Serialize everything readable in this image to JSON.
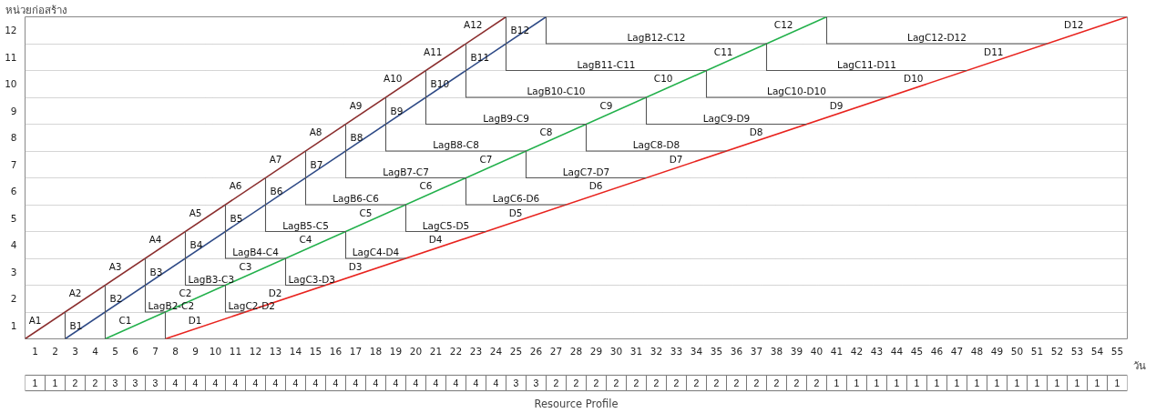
{
  "chart_data": [
    {
      "type": "line",
      "xlabel": "วัน",
      "ylabel": "หน่วยก่อสร้าง",
      "xlim": [
        0,
        55
      ],
      "ylim": [
        0,
        12
      ],
      "grid": "y",
      "marker": "none",
      "line_style": "solid",
      "xticks": [
        {
          "value": 0.5,
          "label": "1"
        },
        {
          "value": 1.5,
          "label": "2"
        },
        {
          "value": 2.5,
          "label": "3"
        },
        {
          "value": 3.5,
          "label": "4"
        },
        {
          "value": 4.5,
          "label": "5"
        },
        {
          "value": 5.5,
          "label": "6"
        },
        {
          "value": 6.5,
          "label": "7"
        },
        {
          "value": 7.5,
          "label": "8"
        },
        {
          "value": 8.5,
          "label": "9"
        },
        {
          "value": 9.5,
          "label": "10"
        },
        {
          "value": 10.5,
          "label": "11"
        },
        {
          "value": 11.5,
          "label": "12"
        },
        {
          "value": 12.5,
          "label": "13"
        },
        {
          "value": 13.5,
          "label": "14"
        },
        {
          "value": 14.5,
          "label": "15"
        },
        {
          "value": 15.5,
          "label": "16"
        },
        {
          "value": 16.5,
          "label": "17"
        },
        {
          "value": 17.5,
          "label": "18"
        },
        {
          "value": 18.5,
          "label": "19"
        },
        {
          "value": 19.5,
          "label": "20"
        },
        {
          "value": 20.5,
          "label": "21"
        },
        {
          "value": 21.5,
          "label": "22"
        },
        {
          "value": 22.5,
          "label": "23"
        },
        {
          "value": 23.5,
          "label": "24"
        },
        {
          "value": 24.5,
          "label": "25"
        },
        {
          "value": 25.5,
          "label": "26"
        },
        {
          "value": 26.5,
          "label": "27"
        },
        {
          "value": 27.5,
          "label": "28"
        },
        {
          "value": 28.5,
          "label": "29"
        },
        {
          "value": 29.5,
          "label": "30"
        },
        {
          "value": 30.5,
          "label": "31"
        },
        {
          "value": 31.5,
          "label": "32"
        },
        {
          "value": 32.5,
          "label": "33"
        },
        {
          "value": 33.5,
          "label": "34"
        },
        {
          "value": 34.5,
          "label": "35"
        },
        {
          "value": 35.5,
          "label": "36"
        },
        {
          "value": 36.5,
          "label": "37"
        },
        {
          "value": 37.5,
          "label": "38"
        },
        {
          "value": 38.5,
          "label": "39"
        },
        {
          "value": 39.5,
          "label": "40"
        },
        {
          "value": 40.5,
          "label": "41"
        },
        {
          "value": 41.5,
          "label": "42"
        },
        {
          "value": 42.5,
          "label": "43"
        },
        {
          "value": 43.5,
          "label": "44"
        },
        {
          "value": 44.5,
          "label": "45"
        },
        {
          "value": 45.5,
          "label": "46"
        },
        {
          "value": 46.5,
          "label": "47"
        },
        {
          "value": 47.5,
          "label": "48"
        },
        {
          "value": 48.5,
          "label": "49"
        },
        {
          "value": 49.5,
          "label": "50"
        },
        {
          "value": 50.5,
          "label": "51"
        },
        {
          "value": 51.5,
          "label": "52"
        },
        {
          "value": 52.5,
          "label": "53"
        },
        {
          "value": 53.5,
          "label": "54"
        },
        {
          "value": 54.5,
          "label": "55"
        }
      ],
      "yticks": [
        {
          "value": 0.5,
          "label": "1"
        },
        {
          "value": 1.5,
          "label": "2"
        },
        {
          "value": 2.5,
          "label": "3"
        },
        {
          "value": 3.5,
          "label": "4"
        },
        {
          "value": 4.5,
          "label": "5"
        },
        {
          "value": 5.5,
          "label": "6"
        },
        {
          "value": 6.5,
          "label": "7"
        },
        {
          "value": 7.5,
          "label": "8"
        },
        {
          "value": 8.5,
          "label": "9"
        },
        {
          "value": 9.5,
          "label": "10"
        },
        {
          "value": 10.5,
          "label": "11"
        },
        {
          "value": 11.5,
          "label": "12"
        },
        {
          "value": 1,
          "label": null
        },
        {
          "value": 2,
          "label": null
        },
        {
          "value": 3,
          "label": null
        },
        {
          "value": 4,
          "label": null
        },
        {
          "value": 5,
          "label": null
        },
        {
          "value": 6,
          "label": null
        },
        {
          "value": 7,
          "label": null
        },
        {
          "value": 8,
          "label": null
        },
        {
          "value": 9,
          "label": null
        },
        {
          "value": 10,
          "label": null
        },
        {
          "value": 11,
          "label": null
        }
      ],
      "series": [
        {
          "color": "#8b2e2e",
          "x": [
            0,
            24
          ],
          "values": [
            0,
            12
          ]
        },
        {
          "color": "#2e4a86",
          "x": [
            2,
            26
          ],
          "values": [
            0,
            12
          ]
        },
        {
          "color": "#22b04b",
          "x": [
            4,
            40
          ],
          "values": [
            0,
            12
          ]
        },
        {
          "color": "#e8231e",
          "x": [
            7,
            55
          ],
          "values": [
            0,
            12
          ]
        },
        {
          "color": "#555555",
          "x": [
            2,
            2
          ],
          "values": [
            1,
            0
          ]
        },
        {
          "color": "#555555",
          "x": [
            4,
            4
          ],
          "values": [
            2,
            0
          ]
        },
        {
          "color": "#555555",
          "x": [
            6,
            6,
            7,
            7
          ],
          "values": [
            3,
            1,
            1,
            0
          ]
        },
        {
          "color": "#555555",
          "x": [
            8,
            8,
            10,
            10,
            11
          ],
          "values": [
            4,
            2,
            2,
            1,
            1
          ]
        },
        {
          "color": "#555555",
          "x": [
            10,
            10,
            13,
            13,
            15
          ],
          "values": [
            5,
            3,
            3,
            2,
            2
          ]
        },
        {
          "color": "#555555",
          "x": [
            12,
            12,
            16,
            16,
            19
          ],
          "values": [
            6,
            4,
            4,
            3,
            3
          ]
        },
        {
          "color": "#555555",
          "x": [
            14,
            14,
            19,
            19,
            23
          ],
          "values": [
            7,
            5,
            5,
            4,
            4
          ]
        },
        {
          "color": "#555555",
          "x": [
            16,
            16,
            22,
            22,
            27
          ],
          "values": [
            8,
            6,
            6,
            5,
            5
          ]
        },
        {
          "color": "#555555",
          "x": [
            18,
            18,
            25,
            25,
            31
          ],
          "values": [
            9,
            7,
            7,
            6,
            6
          ]
        },
        {
          "color": "#555555",
          "x": [
            20,
            20,
            28,
            28,
            35
          ],
          "values": [
            10,
            8,
            8,
            7,
            7
          ]
        },
        {
          "color": "#555555",
          "x": [
            22,
            22,
            31,
            31,
            39
          ],
          "values": [
            11,
            9,
            9,
            8,
            8
          ]
        },
        {
          "color": "#555555",
          "x": [
            24,
            24,
            34,
            34,
            43
          ],
          "values": [
            12,
            10,
            10,
            9,
            9
          ]
        },
        {
          "color": "#555555",
          "x": [
            26,
            26,
            37,
            37,
            47
          ],
          "values": [
            12,
            11,
            11,
            10,
            10
          ]
        },
        {
          "color": "#555555",
          "x": [
            40,
            40,
            51
          ],
          "values": [
            12,
            11,
            11
          ]
        }
      ],
      "annotations": [
        {
          "text": "A1",
          "x": 1,
          "y": 0.5
        },
        {
          "text": "A2",
          "x": 3,
          "y": 1.5
        },
        {
          "text": "A3",
          "x": 5,
          "y": 2.5
        },
        {
          "text": "A4",
          "x": 7,
          "y": 3.5
        },
        {
          "text": "A5",
          "x": 9,
          "y": 4.5
        },
        {
          "text": "A6",
          "x": 11,
          "y": 5.5
        },
        {
          "text": "A7",
          "x": 13,
          "y": 6.5
        },
        {
          "text": "A8",
          "x": 15,
          "y": 7.5
        },
        {
          "text": "A9",
          "x": 17,
          "y": 8.5
        },
        {
          "text": "A10",
          "x": 19,
          "y": 9.5
        },
        {
          "text": "A11",
          "x": 21,
          "y": 10.5
        },
        {
          "text": "A12",
          "x": 23,
          "y": 11.5
        },
        {
          "text": "B1",
          "x": 2,
          "y": 0.5
        },
        {
          "text": "B2",
          "x": 4,
          "y": 1.5
        },
        {
          "text": "B3",
          "x": 6,
          "y": 2.5
        },
        {
          "text": "B4",
          "x": 8,
          "y": 3.5
        },
        {
          "text": "B5",
          "x": 10,
          "y": 4.5
        },
        {
          "text": "B6",
          "x": 12,
          "y": 5.5
        },
        {
          "text": "B7",
          "x": 14,
          "y": 6.5
        },
        {
          "text": "B8",
          "x": 16,
          "y": 7.5
        },
        {
          "text": "B9",
          "x": 18,
          "y": 8.5
        },
        {
          "text": "B10",
          "x": 20,
          "y": 9.5
        },
        {
          "text": "B11",
          "x": 22,
          "y": 10.5
        },
        {
          "text": "B12",
          "x": 24,
          "y": 11.5
        },
        {
          "text": "C1",
          "x": 5.5,
          "y": 0.5
        },
        {
          "text": "C2",
          "x": 8.5,
          "y": 1.5
        },
        {
          "text": "C3",
          "x": 11.5,
          "y": 2.5
        },
        {
          "text": "C4",
          "x": 14.5,
          "y": 3.5
        },
        {
          "text": "C5",
          "x": 17.5,
          "y": 4.5
        },
        {
          "text": "C6",
          "x": 20.5,
          "y": 5.5
        },
        {
          "text": "C7",
          "x": 23.5,
          "y": 6.5
        },
        {
          "text": "C8",
          "x": 26.5,
          "y": 7.5
        },
        {
          "text": "C9",
          "x": 29.5,
          "y": 8.5
        },
        {
          "text": "C10",
          "x": 32.5,
          "y": 9.5
        },
        {
          "text": "C11",
          "x": 35.5,
          "y": 10.5
        },
        {
          "text": "C12",
          "x": 38.5,
          "y": 11.5
        },
        {
          "text": "D1",
          "x": 9,
          "y": 0.5
        },
        {
          "text": "D2",
          "x": 13,
          "y": 1.5
        },
        {
          "text": "D3",
          "x": 17,
          "y": 2.5
        },
        {
          "text": "D4",
          "x": 21,
          "y": 3.5
        },
        {
          "text": "D5",
          "x": 25,
          "y": 4.5
        },
        {
          "text": "D6",
          "x": 29,
          "y": 5.5
        },
        {
          "text": "D7",
          "x": 33,
          "y": 6.5
        },
        {
          "text": "D8",
          "x": 37,
          "y": 7.5
        },
        {
          "text": "D9",
          "x": 41,
          "y": 8.5
        },
        {
          "text": "D10",
          "x": 45,
          "y": 9.5
        },
        {
          "text": "D11",
          "x": 49,
          "y": 10.5
        },
        {
          "text": "D12",
          "x": 53,
          "y": 11.5
        },
        {
          "text": "LagB2-C2",
          "x": 6.5,
          "y": 1
        },
        {
          "text": "LagB3-C3",
          "x": 9,
          "y": 2
        },
        {
          "text": "LagB4-C4",
          "x": 11.5,
          "y": 3
        },
        {
          "text": "LagB5-C5",
          "x": 14,
          "y": 4
        },
        {
          "text": "LagB6-C6",
          "x": 16.5,
          "y": 5
        },
        {
          "text": "LagB7-C7",
          "x": 19,
          "y": 6
        },
        {
          "text": "LagB8-C8",
          "x": 21.5,
          "y": 7
        },
        {
          "text": "LagB9-C9",
          "x": 24,
          "y": 8
        },
        {
          "text": "LagB10-C10",
          "x": 26.5,
          "y": 9
        },
        {
          "text": "LagB11-C11",
          "x": 29,
          "y": 10
        },
        {
          "text": "LagB12-C12",
          "x": 31.5,
          "y": 11
        },
        {
          "text": "LagC2-D2",
          "x": 10.5,
          "y": 1
        },
        {
          "text": "LagC3-D3",
          "x": 14,
          "y": 2
        },
        {
          "text": "LagC4-D4",
          "x": 17.5,
          "y": 3
        },
        {
          "text": "LagC5-D5",
          "x": 21,
          "y": 4
        },
        {
          "text": "LagC6-D6",
          "x": 24.5,
          "y": 5
        },
        {
          "text": "LagC7-D7",
          "x": 28,
          "y": 6
        },
        {
          "text": "LagC8-D8",
          "x": 31.5,
          "y": 7
        },
        {
          "text": "LagC9-D9",
          "x": 35,
          "y": 8
        },
        {
          "text": "LagC10-D10",
          "x": 38.5,
          "y": 9
        },
        {
          "text": "LagC11-D11",
          "x": 42,
          "y": 10
        },
        {
          "text": "LagC12-D12",
          "x": 45.5,
          "y": 11
        }
      ]
    },
    {
      "type": "other",
      "xlabel": "Resource Profile",
      "data_labels": true,
      "values": [
        1,
        1,
        2,
        2,
        3,
        3,
        3,
        4,
        4,
        4,
        4,
        4,
        4,
        4,
        4,
        4,
        4,
        4,
        4,
        4,
        4,
        4,
        4,
        4,
        3,
        3,
        2,
        2,
        2,
        2,
        2,
        2,
        2,
        2,
        2,
        2,
        2,
        2,
        2,
        2,
        1,
        1,
        1,
        1,
        1,
        1,
        1,
        1,
        1,
        1,
        1,
        1,
        1,
        1,
        1
      ]
    }
  ]
}
